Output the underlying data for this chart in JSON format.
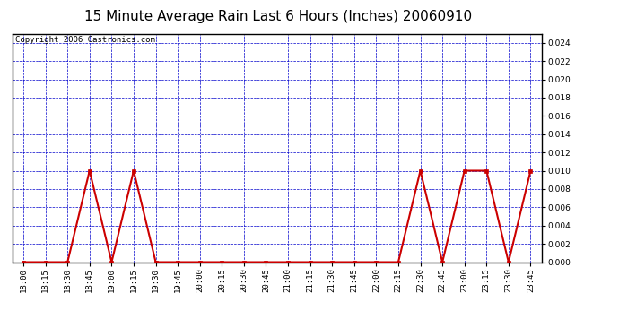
{
  "title": "15 Minute Average Rain Last 6 Hours (Inches) 20060910",
  "copyright_text": "Copyright 2006 Castronics.com",
  "line_color": "#cc0000",
  "marker_color": "#cc0000",
  "grid_color": "#0000cc",
  "background_color": "#ffffff",
  "plot_bg_color": "#ffffff",
  "ylim": [
    0.0,
    0.025
  ],
  "yticks": [
    0.0,
    0.002,
    0.004,
    0.006,
    0.008,
    0.01,
    0.012,
    0.014,
    0.016,
    0.018,
    0.02,
    0.022,
    0.024
  ],
  "x_labels": [
    "18:00",
    "18:15",
    "18:30",
    "18:45",
    "19:00",
    "19:15",
    "19:30",
    "19:45",
    "20:00",
    "20:15",
    "20:30",
    "20:45",
    "21:00",
    "21:15",
    "21:30",
    "21:45",
    "22:00",
    "22:15",
    "22:30",
    "22:45",
    "23:00",
    "23:15",
    "23:30",
    "23:45"
  ],
  "values": [
    0.0,
    0.0,
    0.0,
    0.01,
    0.0,
    0.01,
    0.0,
    0.0,
    0.0,
    0.0,
    0.0,
    0.0,
    0.0,
    0.0,
    0.0,
    0.0,
    0.0,
    0.0,
    0.01,
    0.0,
    0.01,
    0.01,
    0.0,
    0.01
  ],
  "title_fontsize": 11,
  "tick_fontsize": 6.5,
  "copyright_fontsize": 6.5
}
